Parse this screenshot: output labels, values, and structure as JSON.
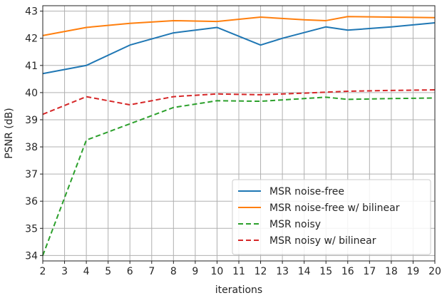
{
  "chart_data": {
    "type": "line",
    "title": "",
    "xlabel": "iterations",
    "ylabel": "PSNR (dB)",
    "xlim": [
      2,
      20
    ],
    "ylim": [
      33.8,
      43.2
    ],
    "x_ticks": [
      2,
      3,
      4,
      5,
      6,
      7,
      8,
      9,
      10,
      11,
      12,
      13,
      14,
      15,
      16,
      17,
      18,
      19,
      20
    ],
    "y_ticks": [
      34,
      35,
      36,
      37,
      38,
      39,
      40,
      41,
      42,
      43
    ],
    "grid": true,
    "legend_position": "lower-right",
    "series": [
      {
        "name": "MSR noise-free",
        "color": "#1f77b4",
        "dash": "solid",
        "x": [
          2,
          4,
          6,
          8,
          10,
          12,
          13,
          15,
          16,
          18,
          20
        ],
        "y": [
          40.7,
          41.0,
          41.75,
          42.2,
          42.4,
          41.75,
          42.0,
          42.42,
          42.3,
          42.42,
          42.57
        ]
      },
      {
        "name": "MSR noise-free w/ bilinear",
        "color": "#ff7f0e",
        "dash": "solid",
        "x": [
          2,
          4,
          6,
          8,
          10,
          12,
          14,
          15,
          16,
          18,
          20
        ],
        "y": [
          42.1,
          42.4,
          42.55,
          42.65,
          42.62,
          42.78,
          42.68,
          42.65,
          42.8,
          42.78,
          42.76
        ]
      },
      {
        "name": "MSR noisy",
        "color": "#2ca02c",
        "dash": "dashed",
        "x": [
          2,
          4,
          6,
          8,
          10,
          12,
          14,
          15,
          16,
          18,
          20
        ],
        "y": [
          34.0,
          38.25,
          38.85,
          39.45,
          39.7,
          39.68,
          39.78,
          39.83,
          39.75,
          39.78,
          39.8
        ]
      },
      {
        "name": "MSR noisy w/ bilinear",
        "color": "#d62728",
        "dash": "dashed",
        "x": [
          2,
          4,
          6,
          8,
          10,
          12,
          14,
          16,
          18,
          20
        ],
        "y": [
          39.2,
          39.85,
          39.55,
          39.85,
          39.95,
          39.92,
          39.98,
          40.05,
          40.08,
          40.1
        ]
      }
    ]
  }
}
